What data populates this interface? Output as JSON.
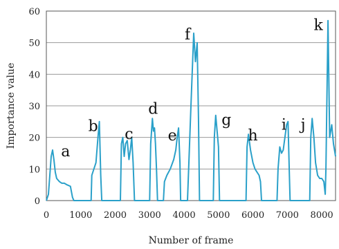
{
  "chart_data": {
    "type": "line",
    "xlabel": "Number of frame",
    "ylabel": "Importance value",
    "xlim": [
      0,
      8400
    ],
    "ylim": [
      0,
      60
    ],
    "x_ticks": [
      0,
      1000,
      2000,
      3000,
      4000,
      5000,
      6000,
      7000,
      8000
    ],
    "y_ticks": [
      0,
      10,
      20,
      30,
      40,
      50,
      60
    ],
    "grid": "horizontal",
    "color": "#2aa0c9",
    "series": [
      {
        "points": [
          [
            0,
            0
          ],
          [
            60,
            2
          ],
          [
            100,
            8
          ],
          [
            140,
            14
          ],
          [
            180,
            16
          ],
          [
            220,
            13
          ],
          [
            260,
            9
          ],
          [
            300,
            7
          ],
          [
            380,
            6
          ],
          [
            450,
            5.5
          ],
          [
            520,
            5.5
          ],
          [
            600,
            5
          ],
          [
            700,
            4.5
          ],
          [
            760,
            1
          ],
          [
            800,
            0
          ],
          [
            1300,
            0
          ],
          [
            1320,
            8
          ],
          [
            1380,
            10
          ],
          [
            1440,
            12
          ],
          [
            1500,
            20
          ],
          [
            1540,
            25
          ],
          [
            1580,
            8
          ],
          [
            1610,
            0
          ],
          [
            2150,
            0
          ],
          [
            2180,
            18
          ],
          [
            2220,
            20
          ],
          [
            2260,
            14
          ],
          [
            2300,
            18
          ],
          [
            2350,
            19
          ],
          [
            2400,
            13
          ],
          [
            2440,
            16
          ],
          [
            2480,
            20
          ],
          [
            2520,
            12
          ],
          [
            2560,
            0
          ],
          [
            3000,
            0
          ],
          [
            3030,
            18
          ],
          [
            3080,
            26
          ],
          [
            3110,
            22
          ],
          [
            3140,
            23
          ],
          [
            3170,
            18
          ],
          [
            3200,
            10
          ],
          [
            3230,
            0
          ],
          [
            3400,
            0
          ],
          [
            3430,
            6
          ],
          [
            3500,
            8
          ],
          [
            3600,
            10
          ],
          [
            3700,
            13
          ],
          [
            3760,
            16
          ],
          [
            3800,
            20
          ],
          [
            3840,
            23
          ],
          [
            3880,
            12
          ],
          [
            3900,
            0
          ],
          [
            4100,
            0
          ],
          [
            4200,
            30
          ],
          [
            4280,
            53
          ],
          [
            4330,
            44
          ],
          [
            4380,
            50
          ],
          [
            4420,
            26
          ],
          [
            4450,
            0
          ],
          [
            4850,
            0
          ],
          [
            4880,
            20
          ],
          [
            4920,
            27
          ],
          [
            4960,
            22
          ],
          [
            5000,
            17
          ],
          [
            5030,
            0
          ],
          [
            5800,
            0
          ],
          [
            5830,
            17
          ],
          [
            5870,
            21
          ],
          [
            5930,
            16
          ],
          [
            6000,
            12
          ],
          [
            6060,
            10
          ],
          [
            6120,
            9
          ],
          [
            6180,
            8
          ],
          [
            6220,
            6
          ],
          [
            6250,
            0
          ],
          [
            6700,
            0
          ],
          [
            6730,
            10
          ],
          [
            6780,
            17
          ],
          [
            6830,
            15
          ],
          [
            6880,
            16
          ],
          [
            6930,
            20
          ],
          [
            6980,
            24
          ],
          [
            7020,
            25
          ],
          [
            7060,
            8
          ],
          [
            7080,
            0
          ],
          [
            7650,
            0
          ],
          [
            7680,
            20
          ],
          [
            7720,
            26
          ],
          [
            7770,
            20
          ],
          [
            7820,
            12
          ],
          [
            7880,
            8
          ],
          [
            7940,
            7
          ],
          [
            8000,
            7
          ],
          [
            8060,
            6
          ],
          [
            8100,
            2
          ],
          [
            8120,
            10
          ],
          [
            8180,
            57
          ],
          [
            8230,
            20
          ],
          [
            8290,
            24
          ],
          [
            8340,
            18
          ],
          [
            8400,
            14
          ]
        ]
      }
    ],
    "annotations": [
      {
        "text": "a",
        "x": 560,
        "y": 14
      },
      {
        "text": "b",
        "x": 1360,
        "y": 22
      },
      {
        "text": "c",
        "x": 2400,
        "y": 19.5
      },
      {
        "text": "d",
        "x": 3100,
        "y": 27.5
      },
      {
        "text": "e",
        "x": 3660,
        "y": 19
      },
      {
        "text": "f",
        "x": 4100,
        "y": 51
      },
      {
        "text": "g",
        "x": 5230,
        "y": 24
      },
      {
        "text": "h",
        "x": 6000,
        "y": 19
      },
      {
        "text": "i",
        "x": 6900,
        "y": 22.5
      },
      {
        "text": "j",
        "x": 7460,
        "y": 22.5
      },
      {
        "text": "k",
        "x": 7900,
        "y": 54
      }
    ]
  }
}
